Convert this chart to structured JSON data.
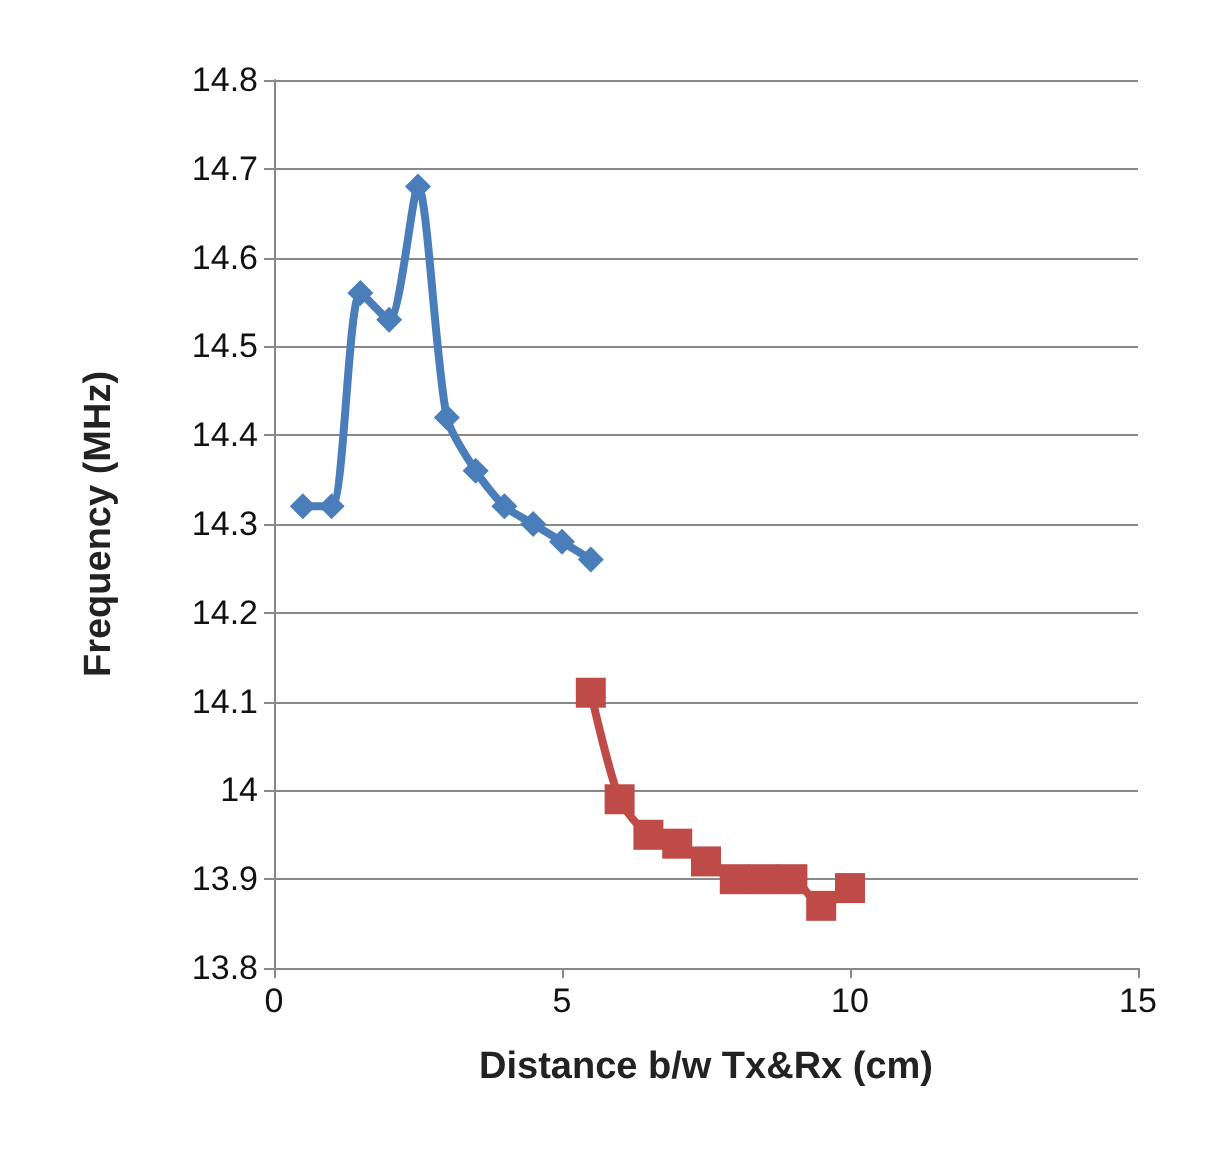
{
  "chart_data": {
    "type": "line",
    "xlabel": "Distance b/w Tx&Rx (cm)",
    "ylabel": "Frequency (MHz)",
    "xlim": [
      0,
      15
    ],
    "xticks": [
      0,
      5,
      10,
      15
    ],
    "ylim": [
      13.8,
      14.8
    ],
    "yticks": [
      13.8,
      13.9,
      {
        "value": 14,
        "label": "14"
      },
      14.1,
      14.2,
      14.3,
      14.4,
      14.5,
      14.6,
      14.7,
      14.8
    ],
    "grid": "y",
    "series": [
      {
        "color": "#4a7ebb",
        "marker": "diamond",
        "x": [
          0.5,
          1,
          1.5,
          2,
          2.5,
          3,
          3.5,
          4,
          4.5,
          5,
          5.5
        ],
        "values": [
          14.32,
          14.32,
          14.56,
          14.53,
          14.68,
          14.42,
          14.36,
          14.32,
          14.3,
          14.28,
          14.26
        ]
      },
      {
        "color": "#be4b48",
        "marker": "square",
        "x": [
          5.5,
          6,
          6.5,
          7,
          7.5,
          8,
          8.5,
          9,
          9.5,
          10
        ],
        "values": [
          14.11,
          13.99,
          13.95,
          13.94,
          13.92,
          13.9,
          13.9,
          13.9,
          13.87,
          13.89
        ]
      }
    ]
  }
}
